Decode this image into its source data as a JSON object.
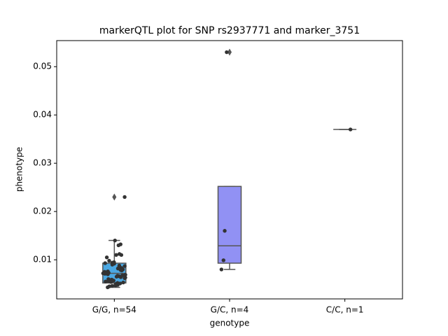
{
  "chart_data": {
    "type": "box",
    "title": "markerQTL plot for SNP rs2937771 and marker_3751",
    "xlabel": "genotype",
    "ylabel": "phenotype",
    "categories": [
      "G/G, n=54",
      "G/C, n=4",
      "C/C, n=1"
    ],
    "ylim": [
      0.0019,
      0.0554
    ],
    "yticks": [
      0.01,
      0.02,
      0.03,
      0.04,
      0.05
    ],
    "boxes": [
      {
        "whislo": 0.0043,
        "q1": 0.0052,
        "med": 0.0072,
        "q3": 0.0093,
        "whishi": 0.014,
        "fliers": [
          0.023
        ],
        "color": "#4ba8e3"
      },
      {
        "whislo": 0.008,
        "q1": 0.0093,
        "med": 0.0129,
        "q3": 0.0252,
        "whishi": 0.0252,
        "fliers": [
          0.053
        ],
        "color": "#9191f4"
      },
      {
        "whislo": 0.037,
        "q1": 0.037,
        "med": 0.037,
        "q3": 0.037,
        "whishi": 0.037,
        "fliers": []
      }
    ],
    "points": [
      [
        0.023,
        0.014,
        0.0132,
        0.013,
        0.0112,
        0.011,
        0.011,
        0.0105,
        0.0098,
        0.0095,
        0.0094,
        0.0093,
        0.0092,
        0.009,
        0.0088,
        0.0087,
        0.0085,
        0.0083,
        0.0082,
        0.008,
        0.0079,
        0.0078,
        0.0076,
        0.0075,
        0.0074,
        0.0073,
        0.0072,
        0.0071,
        0.007,
        0.0069,
        0.0068,
        0.0067,
        0.0066,
        0.0065,
        0.0064,
        0.0063,
        0.0062,
        0.006,
        0.0059,
        0.0058,
        0.0057,
        0.0056,
        0.0055,
        0.0054,
        0.0053,
        0.0052,
        0.0051,
        0.005,
        0.0049,
        0.0048,
        0.0047,
        0.0046,
        0.0045,
        0.0043
      ],
      [
        0.053,
        0.016,
        0.0099,
        0.008
      ],
      [
        0.037
      ]
    ]
  }
}
